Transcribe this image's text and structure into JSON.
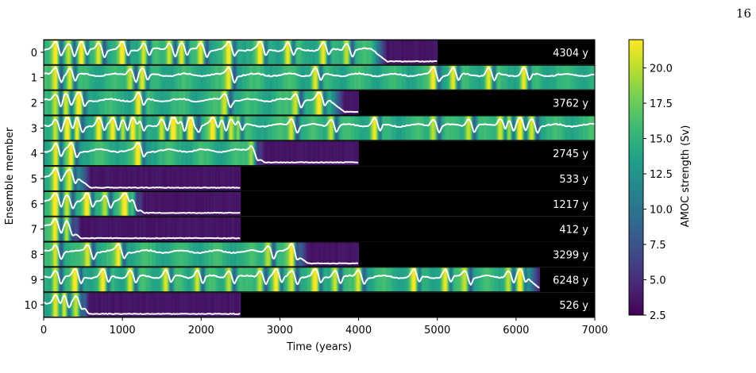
{
  "page_number": "16",
  "chart_data": {
    "type": "heatmap",
    "xlabel": "Time (years)",
    "ylabel": "Ensemble member",
    "xlim": [
      0,
      7000
    ],
    "xticks": [
      0,
      1000,
      2000,
      3000,
      4000,
      5000,
      6000,
      7000
    ],
    "grid": false,
    "colorbar": {
      "label": "AMOC strength (Sv)",
      "range": [
        2.5,
        22
      ],
      "ticks": [
        "2.5",
        "5.0",
        "7.5",
        "10.0",
        "12.5",
        "15.0",
        "17.5",
        "20.0"
      ],
      "colormap": "viridis"
    },
    "line_color": "#ffffff",
    "background_color": "#000000",
    "members": [
      {
        "id": "0",
        "run_length": 5000,
        "collapse_time": 4304,
        "label": "4304 y",
        "oscillations": [
          150,
          320,
          480,
          700,
          1000,
          1270,
          1600,
          1750,
          2000,
          2350,
          2750,
          3100,
          3550,
          3850
        ]
      },
      {
        "id": "1",
        "run_length": 7000,
        "collapse_time": null,
        "label": "",
        "oscillations": [
          150,
          330,
          1100,
          1250,
          2350,
          3450,
          4950,
          5200,
          5650,
          6100
        ]
      },
      {
        "id": "2",
        "run_length": 4000,
        "collapse_time": 3762,
        "label": "3762 y",
        "oscillations": [
          150,
          280,
          450,
          1200,
          2300,
          3200,
          3500
        ]
      },
      {
        "id": "3",
        "run_length": 7000,
        "collapse_time": null,
        "label": "",
        "oscillations": [
          150,
          300,
          420,
          700,
          880,
          1000,
          1120,
          1200,
          1500,
          1640,
          1720,
          1850,
          1900,
          2150,
          2250,
          2370,
          2450,
          3150,
          3650,
          4200,
          4950,
          5400,
          5800,
          5900,
          6050,
          6200
        ]
      },
      {
        "id": "4",
        "run_length": 4000,
        "collapse_time": 2745,
        "label": "2745 y",
        "oscillations": [
          150,
          350,
          1200,
          2650
        ]
      },
      {
        "id": "5",
        "run_length": 2500,
        "collapse_time": 533,
        "label": "533 y",
        "oscillations": [
          150,
          330
        ]
      },
      {
        "id": "6",
        "run_length": 2500,
        "collapse_time": 1217,
        "label": "1217 y",
        "oscillations": [
          150,
          300,
          550,
          780,
          1030,
          1120
        ]
      },
      {
        "id": "7",
        "run_length": 2500,
        "collapse_time": 412,
        "label": "412 y",
        "oscillations": [
          150,
          300
        ]
      },
      {
        "id": "8",
        "run_length": 4000,
        "collapse_time": 3299,
        "label": "3299 y",
        "oscillations": [
          150,
          560,
          950,
          2850,
          3150
        ]
      },
      {
        "id": "9",
        "run_length": 6300,
        "collapse_time": 6248,
        "label": "6248 y",
        "oscillations": [
          150,
          400,
          750,
          1100,
          1550,
          1950,
          2350,
          2750,
          2950,
          3150,
          3450,
          3700,
          4000,
          4700,
          5100,
          5350,
          5900,
          6050
        ]
      },
      {
        "id": "10",
        "run_length": 2500,
        "collapse_time": 526,
        "label": "526 y",
        "oscillations": [
          150,
          250,
          420,
          520
        ]
      }
    ]
  }
}
